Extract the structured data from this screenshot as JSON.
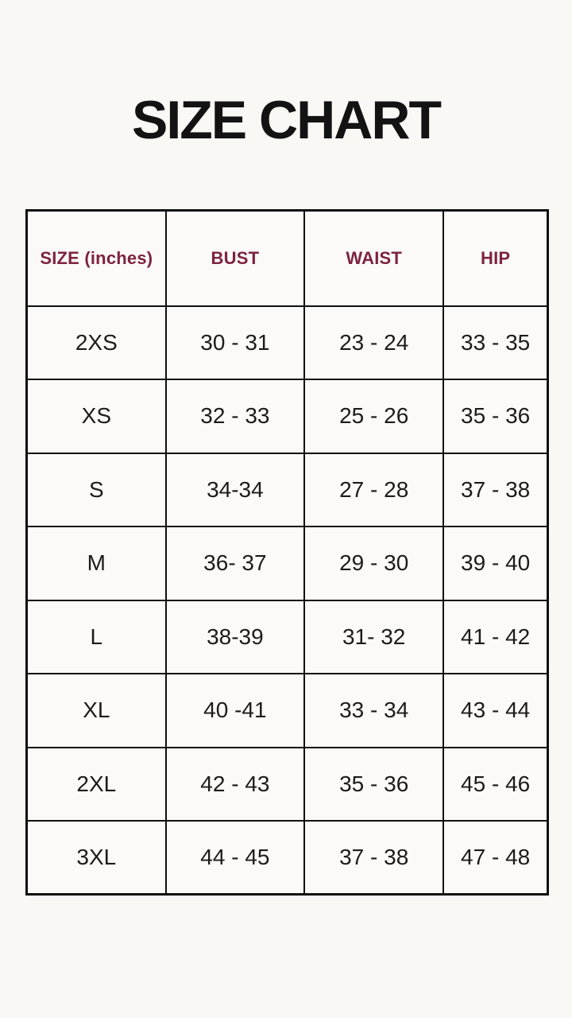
{
  "page": {
    "background_color": "#faf8f5",
    "title_color": "#131313",
    "header_text_color": "#7e2340",
    "cell_text_color": "#1c1c1c",
    "border_color": "#0f0f0f"
  },
  "chart_data": {
    "type": "table",
    "title": "SIZE CHART",
    "columns": [
      "SIZE (inches)",
      "BUST",
      "WAIST",
      "HIP"
    ],
    "rows": [
      [
        "2XS",
        "30 - 31",
        "23 - 24",
        "33 - 35"
      ],
      [
        "XS",
        "32 - 33",
        "25 - 26",
        "35 - 36"
      ],
      [
        "S",
        "34-34",
        "27 - 28",
        "37 - 38"
      ],
      [
        "M",
        "36- 37",
        "29 - 30",
        "39 - 40"
      ],
      [
        "L",
        "38-39",
        "31- 32",
        "41 - 42"
      ],
      [
        "XL",
        "40 -41",
        "33 - 34",
        "43 - 44"
      ],
      [
        "2XL",
        "42 - 43",
        "35 - 36",
        "45 - 46"
      ],
      [
        "3XL",
        "44 - 45",
        "37 - 38",
        "47 - 48"
      ]
    ]
  }
}
